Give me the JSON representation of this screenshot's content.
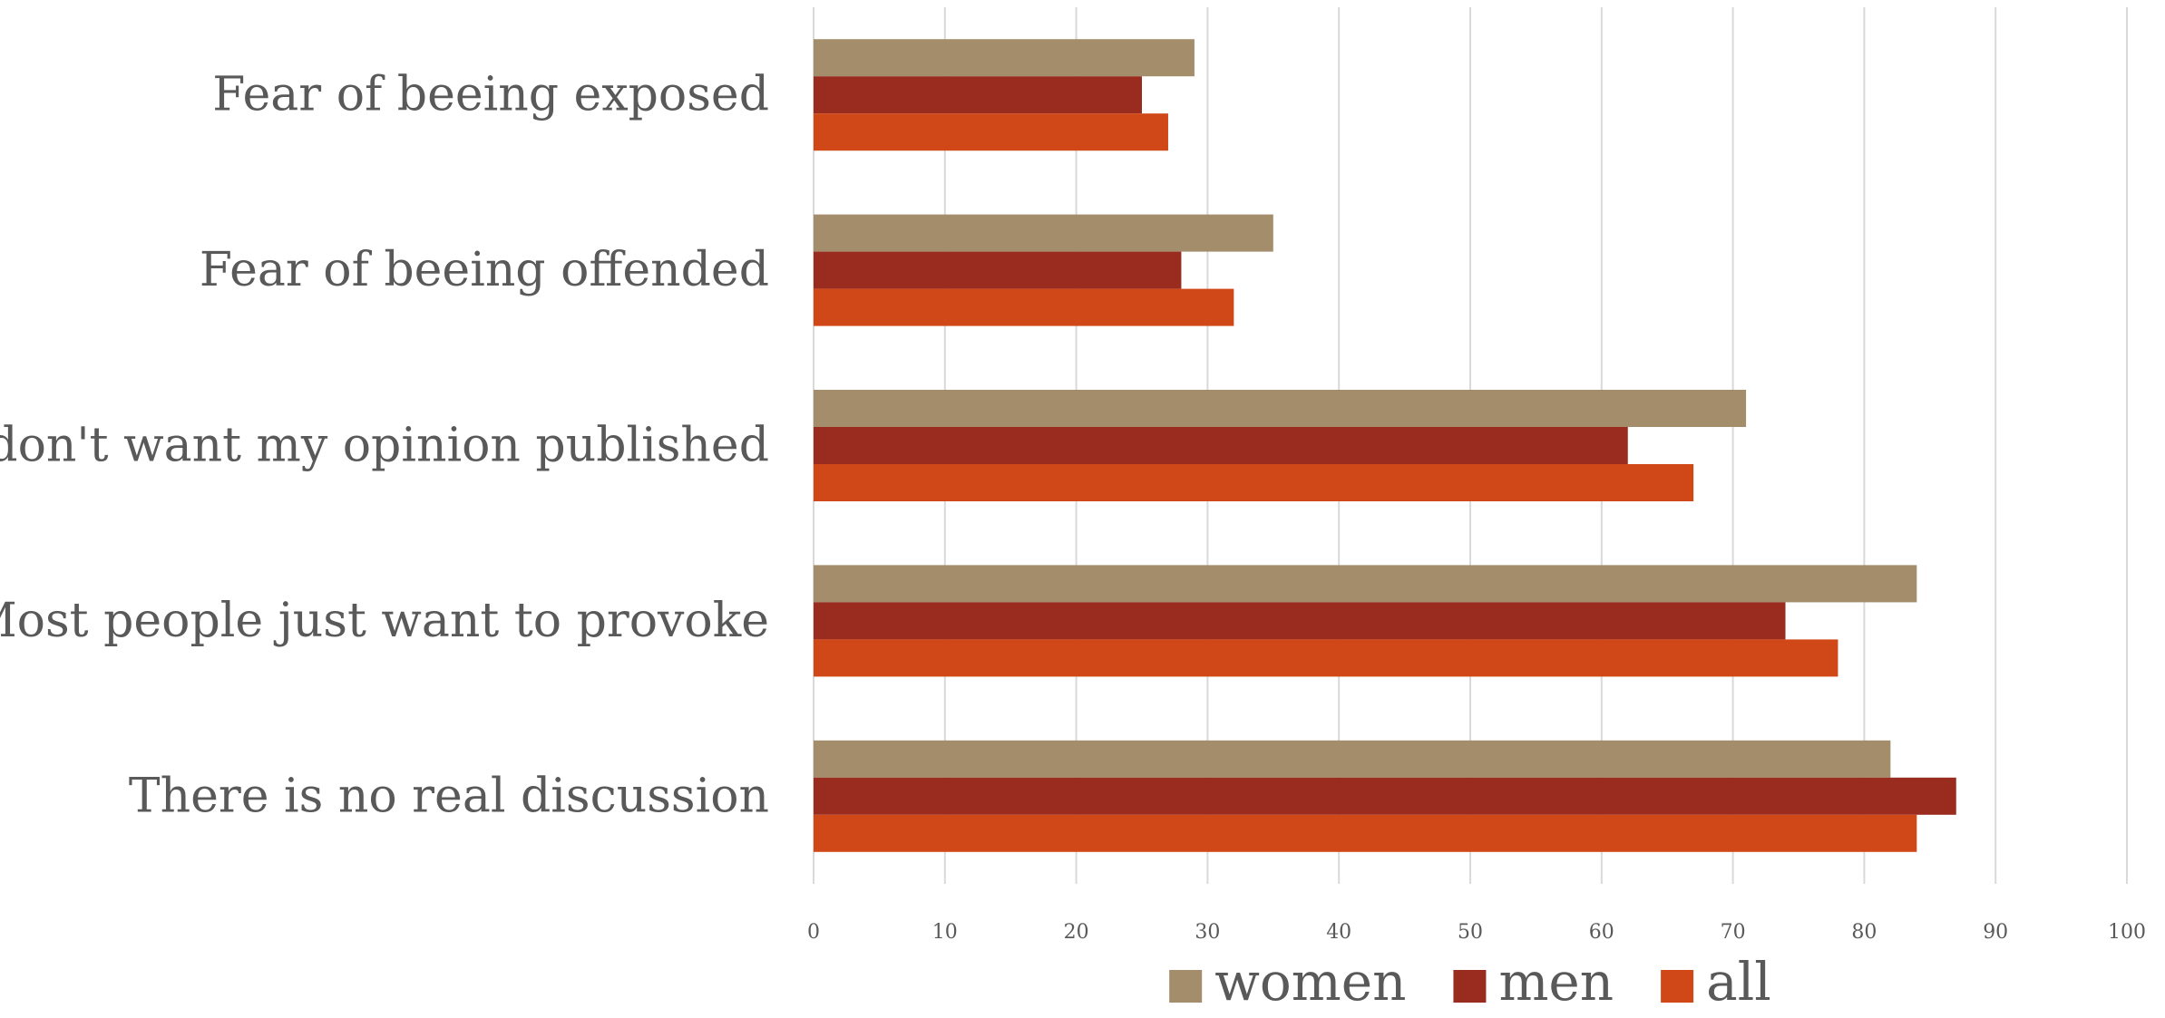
{
  "chart_data": {
    "type": "bar",
    "orientation": "horizontal",
    "categories": [
      "Fear of beeing exposed",
      "Fear of beeing offended",
      "I don't want my opinion published",
      "Most people just want to provoke",
      "There is no real discussion"
    ],
    "series": [
      {
        "name": "women",
        "color": "#A38D6B",
        "values": [
          29,
          35,
          71,
          84,
          82
        ]
      },
      {
        "name": "men",
        "color": "#9A2B1F",
        "values": [
          25,
          28,
          62,
          74,
          87
        ]
      },
      {
        "name": "all",
        "color": "#D14818",
        "values": [
          27,
          32,
          67,
          78,
          84
        ]
      }
    ],
    "xlim": [
      0,
      100
    ],
    "xticks": [
      0,
      10,
      20,
      30,
      40,
      50,
      60,
      70,
      80,
      90,
      100
    ],
    "grid": true,
    "legend": "bottom"
  }
}
